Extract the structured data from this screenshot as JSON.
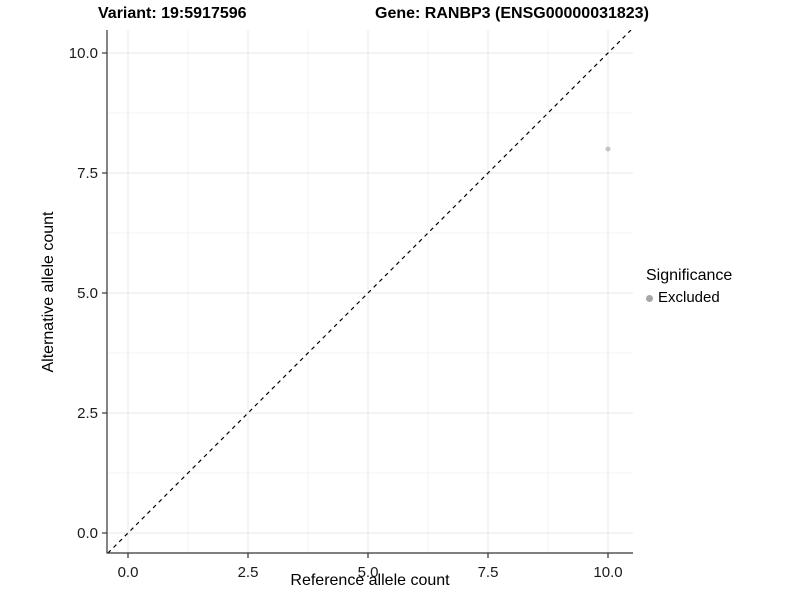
{
  "titles": {
    "variant": "Variant: 19:5917596",
    "gene": "Gene: RANBP3 (ENSG00000031823)"
  },
  "chart_data": {
    "type": "scatter",
    "title_left": "Variant: 19:5917596",
    "title_right": "Gene: RANBP3 (ENSG00000031823)",
    "xlabel": "Reference allele count",
    "ylabel": "Alternative allele count",
    "xlim": [
      -0.44,
      10.52
    ],
    "ylim": [
      -0.42,
      10.48
    ],
    "xticks": [
      0.0,
      2.5,
      5.0,
      7.5,
      10.0
    ],
    "yticks": [
      0.0,
      2.5,
      5.0,
      7.5,
      10.0
    ],
    "xtick_labels": [
      "0.0",
      "2.5",
      "5.0",
      "7.5",
      "10.0"
    ],
    "ytick_labels": [
      "0.0",
      "2.5",
      "5.0",
      "7.5",
      "10.0"
    ],
    "minor_xticks": [
      1.25,
      3.75,
      6.25,
      8.75
    ],
    "minor_yticks": [
      1.25,
      3.75,
      6.25,
      8.75
    ],
    "grid": true,
    "identity_line": {
      "type": "abline",
      "slope": 1,
      "intercept": 0,
      "style": "dashed",
      "color": "#000000"
    },
    "series": [
      {
        "name": "Excluded",
        "color": "#c4c4c4",
        "point_radius": 2.5,
        "points": [
          {
            "x": 10,
            "y": 8
          }
        ]
      }
    ],
    "legend": {
      "title": "Significance",
      "position": "right",
      "entries": [
        {
          "label": "Excluded",
          "color": "#a6a6a6"
        }
      ]
    }
  },
  "colors": {
    "background": "#ffffff",
    "axis_line": "#333333",
    "tick_mark": "#333333",
    "tick_label": "#1a1a1a",
    "grid_major": "#e7e7e7",
    "grid_minor": "#f3f3f3"
  }
}
